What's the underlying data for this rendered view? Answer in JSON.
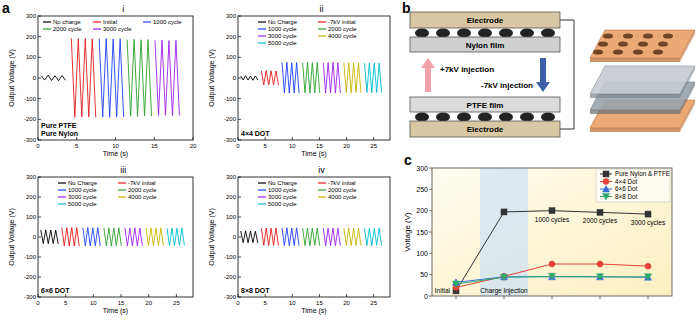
{
  "panel_labels": [
    "a",
    "b",
    "c"
  ],
  "diagram": {
    "layers": [
      "Electrode",
      "Nylon film",
      "PTFE film",
      "Electrode"
    ],
    "injections": [
      "+7kV injection",
      "-7kV injection"
    ]
  },
  "chart_data": [
    {
      "type": "line",
      "panel": "i",
      "annotations": [
        "Pure PTFE",
        "Pure Nylon"
      ],
      "x_label": "Time (s)",
      "y_label": "Output Voltage (V)",
      "xlim": [
        0,
        20
      ],
      "xticks": [
        0,
        5,
        10,
        15,
        20
      ],
      "ylim": [
        -300,
        300
      ],
      "yticks": [
        -300,
        -200,
        -100,
        0,
        100,
        200,
        300
      ],
      "legend": "top",
      "series": [
        {
          "name": "No charge",
          "color": "#000000",
          "x": [
            0.4,
            0.85,
            1.3,
            1.75,
            2.2,
            2.65,
            3.1,
            3.55
          ],
          "values": [
            12,
            -10,
            14,
            -12,
            11,
            -13,
            12,
            -11
          ]
        },
        {
          "name": "Initial",
          "color": "#e41a1c",
          "x": [
            4.3,
            4.75,
            5.2,
            5.65,
            6.1,
            6.55,
            7.0,
            7.45
          ],
          "values": [
            192,
            -190,
            190,
            -188,
            191,
            -189,
            190,
            -190
          ]
        },
        {
          "name": "1000 cycle",
          "color": "#1f3fff",
          "x": [
            7.9,
            8.35,
            8.8,
            9.25,
            9.7,
            10.15,
            10.6,
            11.05
          ],
          "values": [
            190,
            -189,
            191,
            -190,
            189,
            -188,
            190,
            -189
          ]
        },
        {
          "name": "2000 cycle",
          "color": "#2ca02c",
          "x": [
            11.5,
            11.95,
            12.4,
            12.85,
            13.3,
            13.75,
            14.2,
            14.65
          ],
          "values": [
            186,
            -185,
            187,
            -186,
            185,
            -184,
            186,
            -185
          ]
        },
        {
          "name": "3000 cycle",
          "color": "#a020f0",
          "x": [
            15.1,
            15.55,
            16.0,
            16.45,
            16.9,
            17.35,
            17.8,
            18.25
          ],
          "values": [
            182,
            -181,
            183,
            -180,
            181,
            -182,
            182,
            -181
          ]
        }
      ]
    },
    {
      "type": "line",
      "panel": "ii",
      "annotations": [
        "4×4 DOT"
      ],
      "x_label": "Time (s)",
      "y_label": "Output Voltage (V)",
      "xlim": [
        0,
        28
      ],
      "xticks": [
        0,
        5,
        10,
        15,
        20,
        25
      ],
      "ylim": [
        -300,
        300
      ],
      "yticks": [
        -300,
        -200,
        -100,
        0,
        100,
        200,
        300
      ],
      "legend": "top",
      "series": [
        {
          "name": "No Charge",
          "color": "#000000",
          "x": [
            0.5,
            0.95,
            1.4,
            1.85,
            2.3,
            2.75,
            3.2,
            3.65
          ],
          "values": [
            10,
            -9,
            11,
            -10,
            9,
            -11,
            10,
            -9
          ]
        },
        {
          "name": "-7kV initial",
          "color": "#e41a1c",
          "x": [
            4.3,
            4.75,
            5.2,
            5.65,
            6.1,
            6.55,
            7.0,
            7.45
          ],
          "values": [
            35,
            -33,
            36,
            -34,
            35,
            -33,
            34,
            -35
          ]
        },
        {
          "name": "1000 cycle",
          "color": "#1f3fff",
          "x": [
            8.1,
            8.55,
            9.0,
            9.45,
            9.9,
            10.35,
            10.8,
            11.25
          ],
          "values": [
            75,
            -72,
            76,
            -73,
            74,
            -72,
            75,
            -73
          ]
        },
        {
          "name": "2000 cycle",
          "color": "#2ca02c",
          "x": [
            11.9,
            12.35,
            12.8,
            13.25,
            13.7,
            14.15,
            14.6,
            15.05
          ],
          "values": [
            74,
            -72,
            75,
            -73,
            74,
            -71,
            75,
            -72
          ]
        },
        {
          "name": "3000 cycle",
          "color": "#a020f0",
          "x": [
            15.7,
            16.15,
            16.6,
            17.05,
            17.5,
            17.95,
            18.4,
            18.85
          ],
          "values": [
            75,
            -73,
            74,
            -72,
            76,
            -73,
            74,
            -72
          ]
        },
        {
          "name": "4000 cycle",
          "color": "#c8b400",
          "x": [
            19.5,
            19.95,
            20.4,
            20.85,
            21.3,
            21.75,
            22.2,
            22.65
          ],
          "values": [
            73,
            -71,
            74,
            -72,
            73,
            -70,
            74,
            -71
          ]
        },
        {
          "name": "5000 cycle",
          "color": "#00bcd4",
          "x": [
            23.3,
            23.75,
            24.2,
            24.65,
            25.1,
            25.55,
            26.0,
            26.45
          ],
          "values": [
            72,
            -70,
            73,
            -71,
            72,
            -70,
            73,
            -71
          ]
        }
      ]
    },
    {
      "type": "line",
      "panel": "iii",
      "annotations": [
        "6×6 DOT"
      ],
      "x_label": "Time (s)",
      "y_label": "Output Voltage (V)",
      "xlim": [
        0,
        28
      ],
      "xticks": [
        0,
        5,
        10,
        15,
        20,
        25
      ],
      "ylim": [
        -300,
        300
      ],
      "yticks": [
        -300,
        -200,
        -100,
        0,
        100,
        200,
        300
      ],
      "legend": "top",
      "series": [
        {
          "name": "No Charge",
          "color": "#000000",
          "x": [
            0.5,
            0.95,
            1.4,
            1.85,
            2.3,
            2.75,
            3.2,
            3.65
          ],
          "values": [
            35,
            -33,
            36,
            -34,
            35,
            -33,
            34,
            -35
          ]
        },
        {
          "name": "-7kV initial",
          "color": "#e41a1c",
          "x": [
            4.3,
            4.75,
            5.2,
            5.65,
            6.1,
            6.55,
            7.0,
            7.45
          ],
          "values": [
            48,
            -45,
            47,
            -46,
            48,
            -45,
            47,
            -46
          ]
        },
        {
          "name": "1000 cycle",
          "color": "#1f3fff",
          "x": [
            8.1,
            8.55,
            9.0,
            9.45,
            9.9,
            10.35,
            10.8,
            11.25
          ],
          "values": [
            46,
            -44,
            47,
            -45,
            46,
            -44,
            47,
            -45
          ]
        },
        {
          "name": "2000 cycle",
          "color": "#2ca02c",
          "x": [
            11.9,
            12.35,
            12.8,
            13.25,
            13.7,
            14.15,
            14.6,
            15.05
          ],
          "values": [
            45,
            -44,
            46,
            -45,
            45,
            -43,
            46,
            -44
          ]
        },
        {
          "name": "3000 cycle",
          "color": "#a020f0",
          "x": [
            15.7,
            16.15,
            16.6,
            17.05,
            17.5,
            17.95,
            18.4,
            18.85
          ],
          "values": [
            46,
            -45,
            45,
            -44,
            46,
            -45,
            45,
            -44
          ]
        },
        {
          "name": "4000 cycle",
          "color": "#c8b400",
          "x": [
            19.5,
            19.95,
            20.4,
            20.85,
            21.3,
            21.75,
            22.2,
            22.65
          ],
          "values": [
            45,
            -43,
            46,
            -44,
            45,
            -43,
            46,
            -44
          ]
        },
        {
          "name": "5000 cycle",
          "color": "#00bcd4",
          "x": [
            23.3,
            23.75,
            24.2,
            24.65,
            25.1,
            25.55,
            26.0,
            26.45
          ],
          "values": [
            44,
            -43,
            45,
            -44,
            44,
            -42,
            45,
            -43
          ]
        }
      ]
    },
    {
      "type": "line",
      "panel": "iv",
      "annotations": [
        "8×8 DOT"
      ],
      "x_label": "Time (s)",
      "y_label": "Output Voltage (V)",
      "xlim": [
        0,
        28
      ],
      "xticks": [
        0,
        5,
        10,
        15,
        20,
        25
      ],
      "ylim": [
        -300,
        300
      ],
      "yticks": [
        -300,
        -200,
        -100,
        0,
        100,
        200,
        300
      ],
      "legend": "top",
      "series": [
        {
          "name": "No Charge",
          "color": "#000000",
          "x": [
            0.5,
            0.95,
            1.4,
            1.85,
            2.3,
            2.75,
            3.2,
            3.65
          ],
          "values": [
            30,
            -28,
            31,
            -29,
            30,
            -28,
            29,
            -30
          ]
        },
        {
          "name": "-7kV initial",
          "color": "#e41a1c",
          "x": [
            4.3,
            4.75,
            5.2,
            5.65,
            6.1,
            6.55,
            7.0,
            7.45
          ],
          "values": [
            44,
            -42,
            45,
            -43,
            44,
            -42,
            45,
            -43
          ]
        },
        {
          "name": "1000 cycle",
          "color": "#1f3fff",
          "x": [
            8.1,
            8.55,
            9.0,
            9.45,
            9.9,
            10.35,
            10.8,
            11.25
          ],
          "values": [
            45,
            -43,
            46,
            -44,
            45,
            -43,
            46,
            -44
          ]
        },
        {
          "name": "2000 cycle",
          "color": "#2ca02c",
          "x": [
            11.9,
            12.35,
            12.8,
            13.25,
            13.7,
            14.15,
            14.6,
            15.05
          ],
          "values": [
            44,
            -43,
            45,
            -44,
            44,
            -42,
            45,
            -43
          ]
        },
        {
          "name": "3000 cycle",
          "color": "#a020f0",
          "x": [
            15.7,
            16.15,
            16.6,
            17.05,
            17.5,
            17.95,
            18.4,
            18.85
          ],
          "values": [
            45,
            -44,
            44,
            -43,
            45,
            -44,
            44,
            -43
          ]
        },
        {
          "name": "4000 cycle",
          "color": "#c8b400",
          "x": [
            19.5,
            19.95,
            20.4,
            20.85,
            21.3,
            21.75,
            22.2,
            22.65
          ],
          "values": [
            44,
            -42,
            45,
            -43,
            44,
            -42,
            45,
            -43
          ]
        },
        {
          "name": "5000 cycle",
          "color": "#00bcd4",
          "x": [
            23.3,
            23.75,
            24.2,
            24.65,
            25.1,
            25.55,
            26.0,
            26.45
          ],
          "values": [
            43,
            -42,
            44,
            -43,
            43,
            -41,
            44,
            -42
          ]
        }
      ]
    },
    {
      "type": "line",
      "y_label": "Voltage (V)",
      "tick_labels": "y",
      "categories": [
        "Initial",
        "Charge Injection",
        "1000 cycles",
        "2000 cycles",
        "3000 cycles"
      ],
      "ylim": [
        0,
        300
      ],
      "yticks": [
        0,
        50,
        100,
        150,
        200,
        250,
        300
      ],
      "legend": "top-right",
      "series": [
        {
          "name": "Pure Nylon & PTFE",
          "color": "#333333",
          "marker": "square",
          "values": [
            12,
            197,
            200,
            196,
            192
          ]
        },
        {
          "name": "4×4 Dot",
          "color": "#e8413b",
          "marker": "circle",
          "values": [
            20,
            46,
            75,
            75,
            70
          ]
        },
        {
          "name": "6×6 Dot",
          "color": "#3b6fd6",
          "marker": "triangle",
          "values": [
            32,
            45,
            45,
            45,
            44
          ]
        },
        {
          "name": "8×8 Dot",
          "color": "#2ea86b",
          "marker": "triangle-down",
          "values": [
            28,
            44,
            46,
            45,
            45
          ]
        }
      ]
    }
  ]
}
